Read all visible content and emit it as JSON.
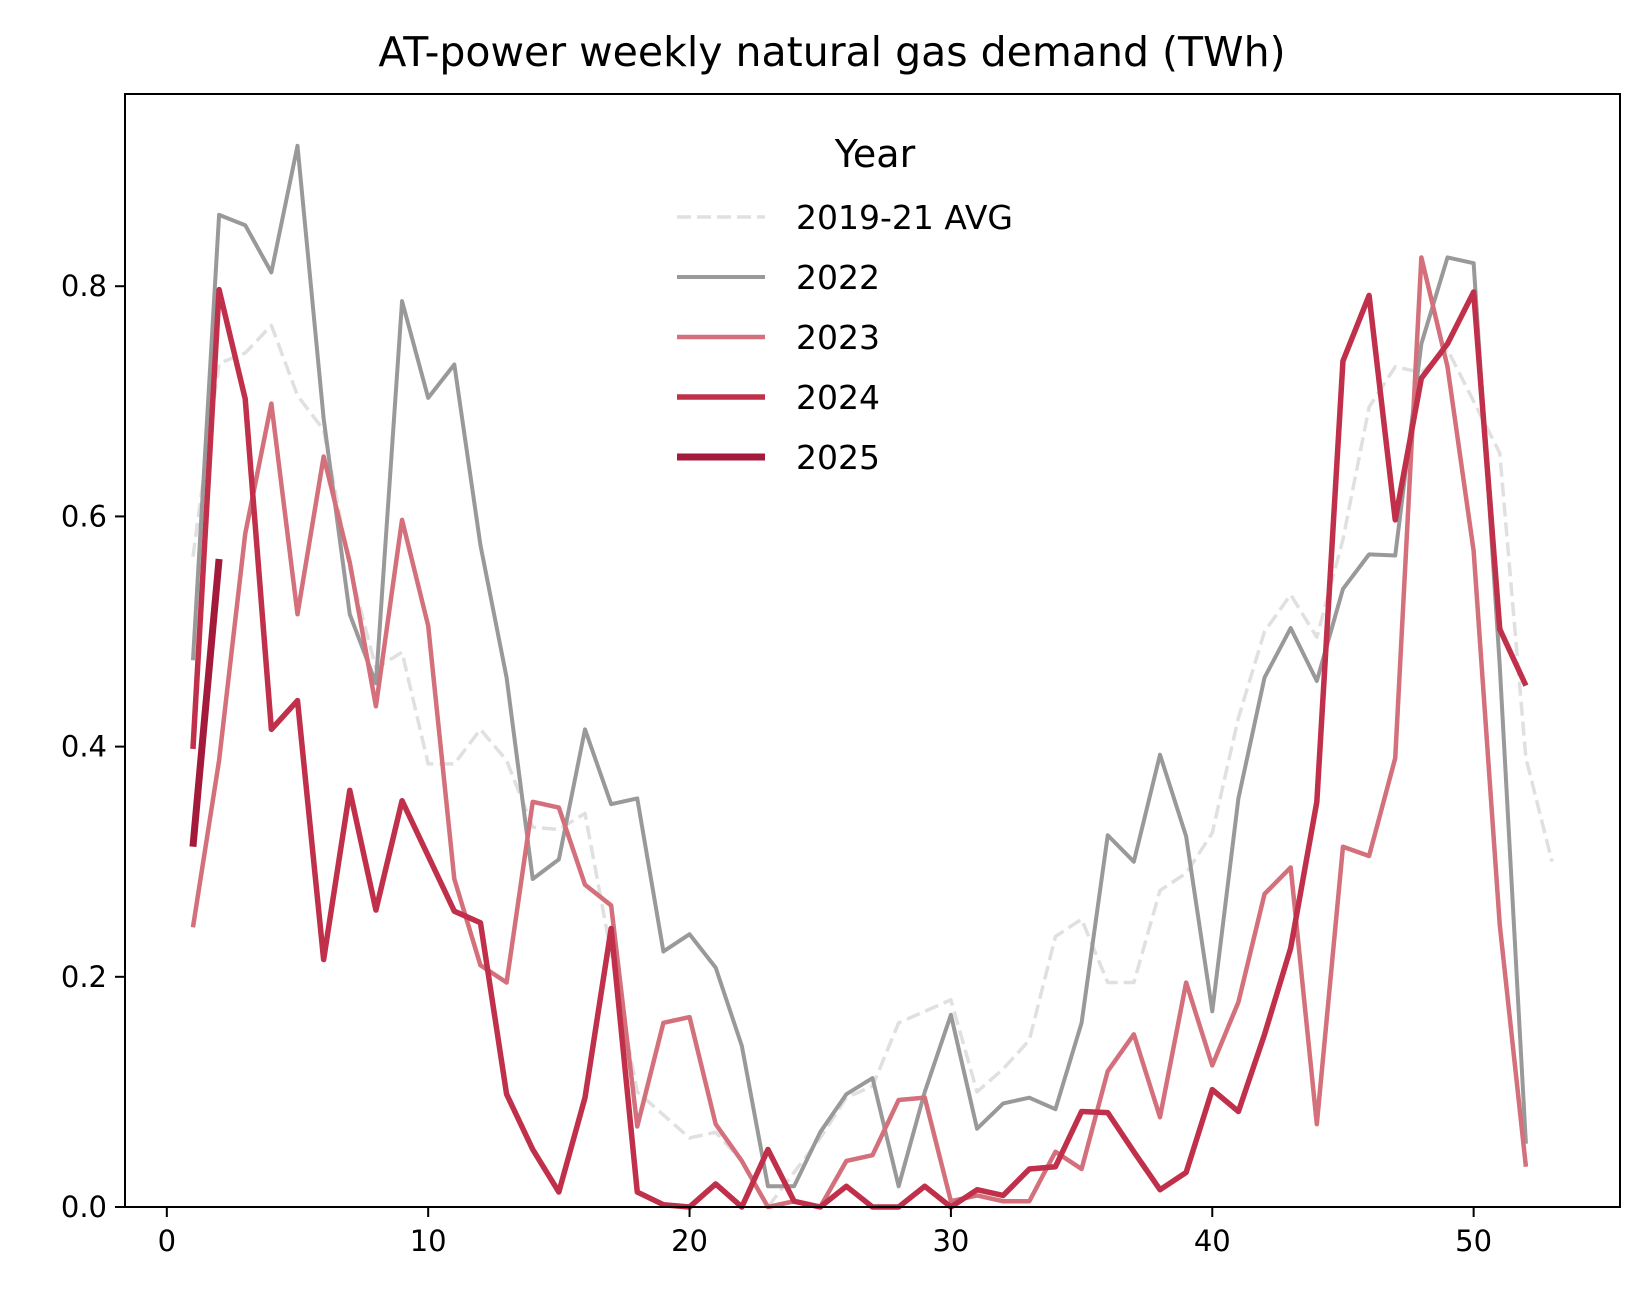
{
  "chart_data": {
    "type": "line",
    "title": "AT-power weekly natural gas demand (TWh)",
    "xlabel": "",
    "ylabel": "",
    "xlim": [
      -1.6,
      55.6
    ],
    "ylim": [
      0,
      0.967
    ],
    "xticks": [
      0,
      10,
      20,
      30,
      40,
      50
    ],
    "xtick_labels": [
      "0",
      "10",
      "20",
      "30",
      "40",
      "50"
    ],
    "yticks": [
      0.0,
      0.2,
      0.4,
      0.6,
      0.8
    ],
    "ytick_labels": [
      "0.0",
      "0.2",
      "0.4",
      "0.6",
      "0.8"
    ],
    "grid": false,
    "legend": {
      "title": "Year",
      "position": "upper center"
    },
    "series": [
      {
        "name": "2019-21 AVG",
        "color": "#e0e0e0",
        "style": "dashed",
        "width": 3.5,
        "x": [
          1,
          2,
          3,
          4,
          5,
          6,
          7,
          8,
          9,
          10,
          11,
          12,
          13,
          14,
          15,
          16,
          17,
          18,
          19,
          20,
          21,
          22,
          23,
          24,
          25,
          26,
          27,
          28,
          29,
          30,
          31,
          32,
          33,
          34,
          35,
          36,
          37,
          38,
          39,
          40,
          41,
          42,
          43,
          44,
          45,
          46,
          47,
          48,
          49,
          50,
          51,
          52,
          53
        ],
        "values": [
          0.565,
          0.733,
          0.742,
          0.766,
          0.705,
          0.675,
          0.555,
          0.468,
          0.482,
          0.385,
          0.385,
          0.415,
          0.388,
          0.33,
          0.328,
          0.342,
          0.22,
          0.1,
          0.08,
          0.06,
          0.065,
          0.04,
          0.0,
          0.03,
          0.06,
          0.095,
          0.105,
          0.16,
          0.17,
          0.18,
          0.1,
          0.12,
          0.145,
          0.235,
          0.25,
          0.195,
          0.195,
          0.275,
          0.29,
          0.325,
          0.425,
          0.5,
          0.532,
          0.495,
          0.58,
          0.695,
          0.73,
          0.725,
          0.745,
          0.7,
          0.655,
          0.39,
          0.3
        ]
      },
      {
        "name": "2022",
        "color": "#999999",
        "style": "solid",
        "width": 4,
        "x": [
          1,
          2,
          3,
          4,
          5,
          6,
          7,
          8,
          9,
          10,
          11,
          12,
          13,
          14,
          15,
          16,
          17,
          18,
          19,
          20,
          21,
          22,
          23,
          24,
          25,
          26,
          27,
          28,
          29,
          30,
          31,
          32,
          33,
          34,
          35,
          36,
          37,
          38,
          39,
          40,
          41,
          42,
          43,
          44,
          45,
          46,
          47,
          48,
          49,
          50,
          51,
          52
        ],
        "values": [
          0.475,
          0.862,
          0.853,
          0.812,
          0.922,
          0.685,
          0.515,
          0.455,
          0.787,
          0.703,
          0.732,
          0.575,
          0.46,
          0.285,
          0.302,
          0.415,
          0.35,
          0.355,
          0.222,
          0.237,
          0.208,
          0.14,
          0.018,
          0.018,
          0.065,
          0.098,
          0.112,
          0.018,
          0.1,
          0.167,
          0.068,
          0.09,
          0.095,
          0.085,
          0.16,
          0.323,
          0.3,
          0.393,
          0.322,
          0.17,
          0.355,
          0.46,
          0.503,
          0.457,
          0.537,
          0.567,
          0.566,
          0.75,
          0.825,
          0.82,
          0.47,
          0.055
        ]
      },
      {
        "name": "2023",
        "color": "#d4707c",
        "style": "solid",
        "width": 4.5,
        "x": [
          1,
          2,
          3,
          4,
          5,
          6,
          7,
          8,
          9,
          10,
          11,
          12,
          13,
          14,
          15,
          16,
          17,
          18,
          19,
          20,
          21,
          22,
          23,
          24,
          25,
          26,
          27,
          28,
          29,
          30,
          31,
          32,
          33,
          34,
          35,
          36,
          37,
          38,
          39,
          40,
          41,
          42,
          43,
          44,
          45,
          46,
          47,
          48,
          49,
          50,
          51,
          52
        ],
        "values": [
          0.243,
          0.388,
          0.585,
          0.698,
          0.515,
          0.652,
          0.56,
          0.435,
          0.597,
          0.505,
          0.285,
          0.21,
          0.195,
          0.352,
          0.347,
          0.28,
          0.262,
          0.07,
          0.16,
          0.165,
          0.072,
          0.04,
          0.0,
          0.005,
          0.0,
          0.04,
          0.045,
          0.093,
          0.095,
          0.005,
          0.01,
          0.005,
          0.005,
          0.048,
          0.033,
          0.118,
          0.15,
          0.078,
          0.195,
          0.123,
          0.178,
          0.272,
          0.295,
          0.072,
          0.313,
          0.305,
          0.39,
          0.825,
          0.73,
          0.57,
          0.245,
          0.035
        ]
      },
      {
        "name": "2024",
        "color": "#c0304a",
        "style": "solid",
        "width": 5.5,
        "x": [
          1,
          2,
          3,
          4,
          5,
          6,
          7,
          8,
          9,
          10,
          11,
          12,
          13,
          14,
          15,
          16,
          17,
          18,
          19,
          20,
          21,
          22,
          23,
          24,
          25,
          26,
          27,
          28,
          29,
          30,
          31,
          32,
          33,
          34,
          35,
          36,
          37,
          38,
          39,
          40,
          41,
          42,
          43,
          44,
          45,
          46,
          47,
          48,
          49,
          50,
          51,
          52
        ],
        "values": [
          0.398,
          0.797,
          0.702,
          0.415,
          0.44,
          0.215,
          0.362,
          0.258,
          0.353,
          0.305,
          0.257,
          0.247,
          0.098,
          0.05,
          0.013,
          0.095,
          0.242,
          0.013,
          0.002,
          0.0,
          0.02,
          0.0,
          0.05,
          0.005,
          0.0,
          0.018,
          0.0,
          0.0,
          0.018,
          0.0,
          0.015,
          0.01,
          0.033,
          0.035,
          0.083,
          0.082,
          0.048,
          0.015,
          0.03,
          0.102,
          0.083,
          0.15,
          0.225,
          0.352,
          0.735,
          0.792,
          0.597,
          0.72,
          0.75,
          0.795,
          0.502,
          0.453
        ]
      },
      {
        "name": "2025",
        "color": "#a31a3b",
        "style": "solid",
        "width": 7,
        "x": [
          1,
          2
        ],
        "values": [
          0.313,
          0.563
        ]
      }
    ]
  }
}
